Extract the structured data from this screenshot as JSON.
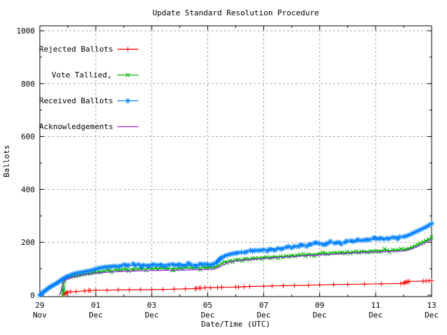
{
  "colors": {
    "background": "#ffffff",
    "border": "#000000",
    "text": "#000000",
    "grid": "#a6a6a6",
    "rejected": "#ff0000",
    "tallied": "#00b000",
    "received": "#0080ff",
    "acknowledgements": "#a020f0"
  },
  "chart_data": {
    "type": "line",
    "title": "Update Standard Resolution Procedure",
    "xlabel": "Date/Time (UTC)",
    "ylabel": "Ballots",
    "ylim": [
      0,
      1000
    ],
    "grid": {
      "on": true,
      "dash": [
        3,
        3
      ]
    },
    "legend_position": "top-left-inside",
    "x_axis": {
      "unit": "days since 29 Nov 00:00 UTC",
      "range_days": [
        0,
        14
      ],
      "major_tick_days": [
        0,
        2,
        4,
        6,
        8,
        10,
        12,
        14
      ],
      "minor_tick_days": [
        1,
        3,
        5,
        7,
        9,
        11,
        13
      ],
      "major_tick_labels": [
        {
          "day": "29",
          "month": "Nov"
        },
        {
          "day": "01",
          "month": "Dec"
        },
        {
          "day": "03",
          "month": "Dec"
        },
        {
          "day": "05",
          "month": "Dec"
        },
        {
          "day": "07",
          "month": "Dec"
        },
        {
          "day": "09",
          "month": "Dec"
        },
        {
          "day": "11",
          "month": "Dec"
        },
        {
          "day": "13",
          "month": "Dec"
        }
      ]
    },
    "y_axis": {
      "major_ticks": [
        0,
        200,
        400,
        600,
        800,
        1000
      ],
      "minor_step": 100
    },
    "series": [
      {
        "name": "Rejected Ballots",
        "color_key": "rejected",
        "marker": "plus",
        "dense": false,
        "points": [
          [
            0.85,
            2
          ],
          [
            0.9,
            6
          ],
          [
            0.95,
            10
          ],
          [
            1.0,
            12
          ],
          [
            1.1,
            13
          ],
          [
            1.3,
            14
          ],
          [
            1.6,
            16
          ],
          [
            1.75,
            18
          ],
          [
            1.8,
            18
          ],
          [
            2.0,
            19
          ],
          [
            2.4,
            19
          ],
          [
            2.8,
            20
          ],
          [
            3.2,
            20
          ],
          [
            3.6,
            21
          ],
          [
            4.0,
            21
          ],
          [
            4.4,
            22
          ],
          [
            4.8,
            23
          ],
          [
            5.2,
            24
          ],
          [
            5.55,
            25
          ],
          [
            5.6,
            26
          ],
          [
            5.7,
            27
          ],
          [
            5.75,
            27
          ],
          [
            5.9,
            28
          ],
          [
            6.1,
            28
          ],
          [
            6.35,
            29
          ],
          [
            6.5,
            30
          ],
          [
            7.0,
            31
          ],
          [
            7.1,
            31
          ],
          [
            7.3,
            32
          ],
          [
            7.5,
            33
          ],
          [
            8.0,
            34
          ],
          [
            8.3,
            35
          ],
          [
            8.7,
            36
          ],
          [
            9.1,
            37
          ],
          [
            9.6,
            38
          ],
          [
            10.0,
            39
          ],
          [
            10.5,
            40
          ],
          [
            11.0,
            41
          ],
          [
            11.6,
            42
          ],
          [
            12.2,
            43
          ],
          [
            12.9,
            44
          ],
          [
            13.0,
            46
          ],
          [
            13.05,
            48
          ],
          [
            13.1,
            50
          ],
          [
            13.15,
            51
          ],
          [
            13.2,
            52
          ],
          [
            13.7,
            53
          ],
          [
            13.8,
            54
          ],
          [
            13.9,
            54
          ],
          [
            14.0,
            55
          ]
        ]
      },
      {
        "name": "Vote Tallied,",
        "color_key": "tallied",
        "marker": "cross",
        "dense": true,
        "points": [
          [
            0.82,
            0
          ],
          [
            0.83,
            20
          ],
          [
            0.84,
            40
          ],
          [
            0.85,
            58
          ],
          [
            0.9,
            61
          ],
          [
            1.0,
            65
          ],
          [
            1.1,
            68
          ],
          [
            1.2,
            71
          ],
          [
            1.3,
            73
          ],
          [
            1.5,
            77
          ],
          [
            1.7,
            81
          ],
          [
            1.9,
            85
          ],
          [
            2.1,
            88
          ],
          [
            2.3,
            91
          ],
          [
            2.5,
            93
          ],
          [
            2.8,
            95
          ],
          [
            3.1,
            97
          ],
          [
            3.5,
            99
          ],
          [
            4.0,
            100
          ],
          [
            4.5,
            101
          ],
          [
            5.0,
            102
          ],
          [
            5.5,
            103
          ],
          [
            6.0,
            104
          ],
          [
            6.2,
            105
          ],
          [
            6.3,
            108
          ],
          [
            6.4,
            113
          ],
          [
            6.5,
            120
          ],
          [
            6.6,
            126
          ],
          [
            6.8,
            130
          ],
          [
            7.0,
            133
          ],
          [
            7.3,
            136
          ],
          [
            7.6,
            139
          ],
          [
            8.0,
            142
          ],
          [
            8.4,
            145
          ],
          [
            8.8,
            148
          ],
          [
            9.2,
            151
          ],
          [
            9.6,
            154
          ],
          [
            10.0,
            157
          ],
          [
            10.4,
            159
          ],
          [
            10.8,
            161
          ],
          [
            11.2,
            163
          ],
          [
            11.6,
            165
          ],
          [
            12.0,
            167
          ],
          [
            12.4,
            169
          ],
          [
            12.8,
            171
          ],
          [
            13.0,
            172
          ],
          [
            13.1,
            174
          ],
          [
            13.2,
            177
          ],
          [
            13.3,
            181
          ],
          [
            13.4,
            186
          ],
          [
            13.5,
            191
          ],
          [
            13.6,
            196
          ],
          [
            13.7,
            201
          ],
          [
            13.8,
            206
          ],
          [
            13.9,
            212
          ],
          [
            14.0,
            219
          ]
        ]
      },
      {
        "name": "Received Ballots",
        "color_key": "received",
        "marker": "asterisk",
        "dense": true,
        "points": [
          [
            0,
            1
          ],
          [
            0.05,
            5
          ],
          [
            0.1,
            10
          ],
          [
            0.15,
            14
          ],
          [
            0.2,
            18
          ],
          [
            0.25,
            22
          ],
          [
            0.3,
            26
          ],
          [
            0.35,
            30
          ],
          [
            0.4,
            33
          ],
          [
            0.45,
            36
          ],
          [
            0.5,
            39
          ],
          [
            0.55,
            42
          ],
          [
            0.6,
            45
          ],
          [
            0.65,
            48
          ],
          [
            0.7,
            52
          ],
          [
            0.75,
            56
          ],
          [
            0.8,
            60
          ],
          [
            0.85,
            63
          ],
          [
            0.9,
            66
          ],
          [
            0.95,
            69
          ],
          [
            1.0,
            72
          ],
          [
            1.1,
            76
          ],
          [
            1.2,
            80
          ],
          [
            1.3,
            83
          ],
          [
            1.4,
            85
          ],
          [
            1.5,
            87
          ],
          [
            1.6,
            89
          ],
          [
            1.7,
            91
          ],
          [
            1.8,
            93
          ],
          [
            1.9,
            96
          ],
          [
            2.0,
            99
          ],
          [
            2.1,
            102
          ],
          [
            2.2,
            104
          ],
          [
            2.3,
            106
          ],
          [
            2.4,
            107
          ],
          [
            2.5,
            108
          ],
          [
            2.6,
            109
          ],
          [
            2.7,
            110
          ],
          [
            2.9,
            111
          ],
          [
            3.1,
            112
          ],
          [
            3.4,
            113
          ],
          [
            3.7,
            114
          ],
          [
            4.0,
            114
          ],
          [
            4.3,
            115
          ],
          [
            4.6,
            115
          ],
          [
            5.0,
            116
          ],
          [
            5.4,
            116
          ],
          [
            5.8,
            117
          ],
          [
            6.0,
            117
          ],
          [
            6.2,
            118
          ],
          [
            6.3,
            122
          ],
          [
            6.35,
            128
          ],
          [
            6.4,
            134
          ],
          [
            6.5,
            142
          ],
          [
            6.6,
            148
          ],
          [
            6.7,
            152
          ],
          [
            6.8,
            155
          ],
          [
            6.9,
            157
          ],
          [
            7.0,
            159
          ],
          [
            7.2,
            162
          ],
          [
            7.4,
            165
          ],
          [
            7.6,
            167
          ],
          [
            7.8,
            169
          ],
          [
            8.0,
            172
          ],
          [
            8.2,
            174
          ],
          [
            8.5,
            177
          ],
          [
            8.8,
            181
          ],
          [
            9.1,
            185
          ],
          [
            9.4,
            189
          ],
          [
            9.7,
            192
          ],
          [
            10.0,
            195
          ],
          [
            10.3,
            197
          ],
          [
            10.6,
            199
          ],
          [
            10.9,
            200
          ],
          [
            11.2,
            203
          ],
          [
            11.5,
            207
          ],
          [
            11.8,
            210
          ],
          [
            12.1,
            213
          ],
          [
            12.4,
            215
          ],
          [
            12.7,
            218
          ],
          [
            13.0,
            221
          ],
          [
            13.1,
            224
          ],
          [
            13.2,
            228
          ],
          [
            13.3,
            233
          ],
          [
            13.4,
            238
          ],
          [
            13.5,
            243
          ],
          [
            13.6,
            248
          ],
          [
            13.7,
            253
          ],
          [
            13.8,
            258
          ],
          [
            13.9,
            264
          ],
          [
            14.0,
            271
          ]
        ]
      },
      {
        "name": "Acknowledgements",
        "color_key": "acknowledgements",
        "marker": "none",
        "dense": false,
        "points": [
          [
            0.7,
            0
          ],
          [
            0.75,
            15
          ],
          [
            0.8,
            35
          ],
          [
            0.85,
            50
          ],
          [
            0.9,
            57
          ],
          [
            1.0,
            62
          ],
          [
            1.2,
            68
          ],
          [
            1.4,
            73
          ],
          [
            1.6,
            77
          ],
          [
            1.8,
            80
          ],
          [
            2.0,
            83
          ],
          [
            2.3,
            86
          ],
          [
            2.6,
            88
          ],
          [
            3.0,
            90
          ],
          [
            3.5,
            92
          ],
          [
            4.0,
            93
          ],
          [
            4.5,
            94
          ],
          [
            5.0,
            95
          ],
          [
            5.5,
            96
          ],
          [
            6.0,
            97
          ],
          [
            6.2,
            98
          ],
          [
            6.35,
            103
          ],
          [
            6.5,
            112
          ],
          [
            6.65,
            120
          ],
          [
            6.8,
            125
          ],
          [
            7.0,
            129
          ],
          [
            7.4,
            133
          ],
          [
            7.8,
            137
          ],
          [
            8.2,
            140
          ],
          [
            8.6,
            143
          ],
          [
            9.0,
            146
          ],
          [
            9.5,
            149
          ],
          [
            10.0,
            152
          ],
          [
            10.5,
            155
          ],
          [
            11.0,
            158
          ],
          [
            11.5,
            161
          ],
          [
            12.0,
            163
          ],
          [
            12.5,
            165
          ],
          [
            13.0,
            167
          ],
          [
            13.1,
            169
          ],
          [
            13.2,
            172
          ],
          [
            13.3,
            176
          ],
          [
            13.5,
            184
          ],
          [
            13.7,
            194
          ],
          [
            13.85,
            202
          ],
          [
            14.0,
            212
          ]
        ]
      }
    ]
  }
}
